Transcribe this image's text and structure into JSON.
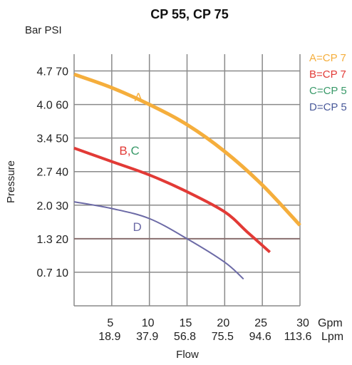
{
  "chart_data": {
    "type": "line",
    "title": "CP 55, CP 75",
    "y_unit_label": "Bar PSI",
    "ylabel": "Pressure",
    "xlabel": "Flow",
    "x_unit_gpm": "Gpm",
    "x_unit_lpm": "Lpm",
    "xlim": [
      0,
      30
    ],
    "ylim": [
      0,
      75
    ],
    "grid": true,
    "legend_position": "right",
    "x_ticks": [
      {
        "gpm": "5",
        "lpm": "18.9",
        "value": 5
      },
      {
        "gpm": "10",
        "lpm": "37.9",
        "value": 10
      },
      {
        "gpm": "15",
        "lpm": "56.8",
        "value": 15
      },
      {
        "gpm": "20",
        "lpm": "75.5",
        "value": 20
      },
      {
        "gpm": "25",
        "lpm": "94.6",
        "value": 25
      },
      {
        "gpm": "30",
        "lpm": "113.6",
        "value": 30
      }
    ],
    "y_ticks": [
      {
        "label": "4.7 70",
        "value": 70
      },
      {
        "label": "4.0 60",
        "value": 60
      },
      {
        "label": "3.4 50",
        "value": 50
      },
      {
        "label": "2.7 40",
        "value": 40
      },
      {
        "label": "2.0 30",
        "value": 30
      },
      {
        "label": "1.3 20",
        "value": 20
      },
      {
        "label": "0.7 10",
        "value": 10
      }
    ],
    "reference_line": {
      "y": 20,
      "color": "#8a7070"
    },
    "series": [
      {
        "name": "A",
        "color": "#f5ae3c",
        "x": [
          0,
          5,
          10,
          15,
          20,
          25,
          30
        ],
        "y": [
          69,
          65,
          60,
          54,
          46,
          36,
          24
        ]
      },
      {
        "name": "B,C",
        "color": "#e23a36",
        "x": [
          0,
          5,
          10,
          15,
          20,
          23,
          26
        ],
        "y": [
          47,
          43,
          39,
          34,
          28,
          22,
          16
        ]
      },
      {
        "name": "D",
        "color": "#6c6aa6",
        "x": [
          0,
          5,
          10,
          15,
          20,
          22.5
        ],
        "y": [
          31,
          29,
          26,
          20,
          13,
          8
        ]
      }
    ],
    "curve_labels": [
      {
        "text_a": "A",
        "color": "#f5ae3c",
        "x": 8,
        "y": 61
      },
      {
        "text_b": "B",
        "text_sep": ",",
        "text_c": "C",
        "color_b": "#e23a36",
        "color_c": "#3a9a6a",
        "x": 6,
        "y": 45
      },
      {
        "text_d": "D",
        "color": "#6c6aa6",
        "x": 8,
        "y": 24
      }
    ],
    "legend": [
      {
        "text": "A=CP 7",
        "color": "#f5ae3c"
      },
      {
        "text": "B=CP 7",
        "color": "#e23a36"
      },
      {
        "text": "C=CP 5",
        "color": "#3a9a6a"
      },
      {
        "text": "D=CP 5",
        "color": "#4a5a9a"
      }
    ]
  }
}
